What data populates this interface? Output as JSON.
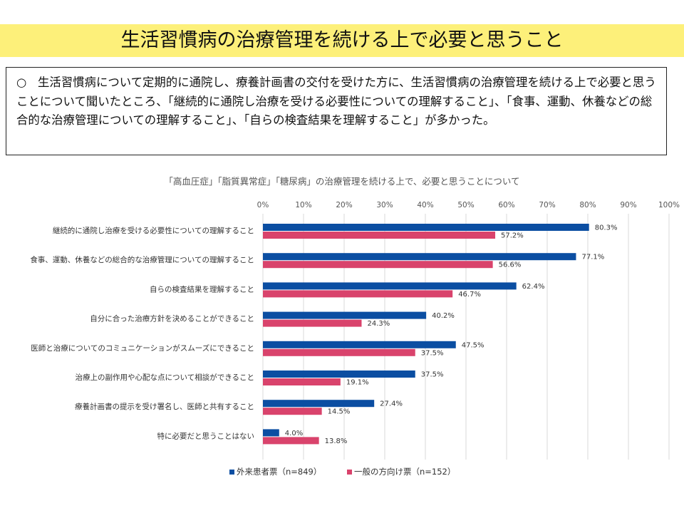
{
  "page": {
    "title": "生活習慣病の治療管理を続ける上で必要と思うこと",
    "summary_bullet": "○",
    "summary_text": "生活習慣病について定期的に通院し、療養計画書の交付を受けた方に、生活習慣病の治療管理を続ける上で必要と思うことについて聞いたところ、「継続的に通院し治療を受ける必要性についての理解すること」、「食事、運動、休養などの総合的な治療管理についての理解すること」、「自らの検査結果を理解すること」が多かった。"
  },
  "colors": {
    "title_band": "#fdf07a",
    "series_outpatient": "#0b4ea2",
    "series_general": "#d9436c",
    "grid": "#d9d9d9"
  },
  "chart_data": {
    "type": "bar",
    "orientation": "horizontal",
    "title": "「高血圧症」「脂質異常症」「糖尿病」の治療管理を続ける上で、必要と思うことについて",
    "categories": [
      "継続的に通院し治療を受ける必要性についての理解すること",
      "食事、運動、休養などの総合的な治療管理についての理解すること",
      "自らの検査結果を理解すること",
      "自分に合った治療方針を決めることができること",
      "医師と治療についてのコミュニケーションがスムーズにできること",
      "治療上の副作用や心配な点について相談ができること",
      "療養計画書の提示を受け署名し、医師と共有すること",
      "特に必要だと思うことはない"
    ],
    "series": [
      {
        "name": "外来患者票（n=849）",
        "values": [
          80.3,
          77.1,
          62.4,
          40.2,
          47.5,
          37.5,
          27.4,
          4.0
        ]
      },
      {
        "name": "一般の方向け票（n=152）",
        "values": [
          57.2,
          56.6,
          46.7,
          24.3,
          37.5,
          19.1,
          14.5,
          13.8
        ]
      }
    ],
    "x_ticks": [
      "0%",
      "10%",
      "20%",
      "30%",
      "40%",
      "50%",
      "60%",
      "70%",
      "80%",
      "90%",
      "100%"
    ],
    "xlim": [
      0,
      100
    ],
    "value_suffix": "%",
    "grid": true,
    "axis_position": "top",
    "legend_position": "bottom"
  }
}
